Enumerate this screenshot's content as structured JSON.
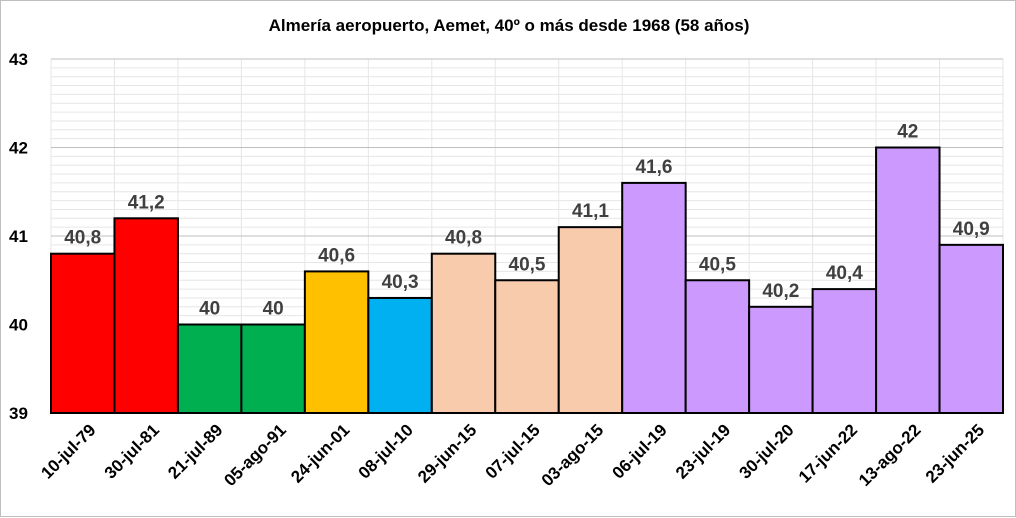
{
  "chart_data": {
    "type": "bar",
    "title": "Almería aeropuerto,  Aemet, 40º o más desde 1968 (58 años)",
    "xlabel": "",
    "ylabel": "",
    "ylim": [
      39,
      43
    ],
    "yticks": [
      "39",
      "40",
      "41",
      "42",
      "43"
    ],
    "grid": true,
    "legend": "none",
    "categories": [
      "10-jul-79",
      "30-jul-81",
      "21-jul-89",
      "05-ago-91",
      "24-jun-01",
      "08-jul-10",
      "29-jun-15",
      "07-jul-15",
      "03-ago-15",
      "06-jul-19",
      "23-jul-19",
      "30-jul-20",
      "17-jun-22",
      "13-ago-22",
      "23-jun-25"
    ],
    "values": [
      40.8,
      41.2,
      40,
      40,
      40.6,
      40.3,
      40.8,
      40.5,
      41.1,
      41.6,
      40.5,
      40.2,
      40.4,
      42,
      40.9
    ],
    "value_labels": [
      "40,8",
      "41,2",
      "40",
      "40",
      "40,6",
      "40,3",
      "40,8",
      "40,5",
      "41,1",
      "41,6",
      "40,5",
      "40,2",
      "40,4",
      "42",
      "40,9"
    ],
    "colors": [
      "#ff0000",
      "#ff0000",
      "#00b050",
      "#00b050",
      "#ffc000",
      "#00b0f0",
      "#f8cbad",
      "#f8cbad",
      "#f8cbad",
      "#cc99ff",
      "#cc99ff",
      "#cc99ff",
      "#cc99ff",
      "#cc99ff",
      "#cc99ff"
    ]
  }
}
